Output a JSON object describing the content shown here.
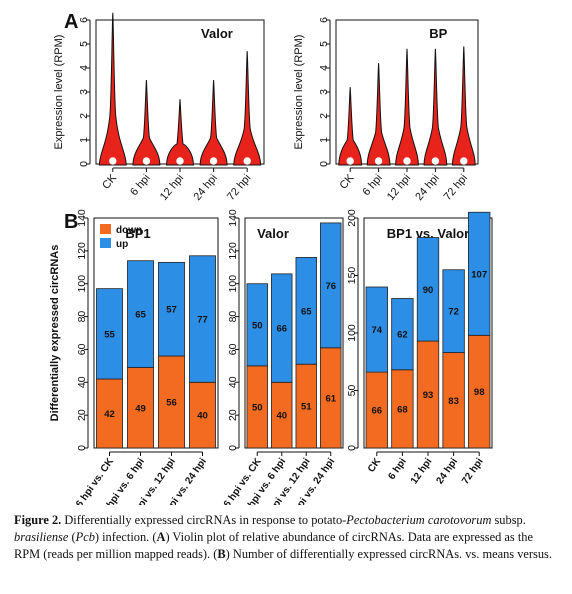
{
  "panel_labels": [
    "A",
    "B"
  ],
  "chart_data": [
    {
      "type": "violin",
      "title": "Valor",
      "ylabel": "Expression level (RPM)",
      "ylim": [
        0,
        6
      ],
      "yticks": [
        0,
        1,
        2,
        3,
        4,
        5,
        6
      ],
      "categories": [
        "CK",
        "6 hpi",
        "12 hpi",
        "24 hpi",
        "72 hpi"
      ],
      "max_values": [
        6.3,
        3.5,
        2.7,
        3.5,
        4.7
      ],
      "color": "#e8231b"
    },
    {
      "type": "violin",
      "title": "BP",
      "ylabel": "Expression level (RPM)",
      "ylim": [
        0,
        6
      ],
      "yticks": [
        0,
        1,
        2,
        3,
        4,
        5,
        6
      ],
      "categories": [
        "CK",
        "6 hpi",
        "12 hpi",
        "24 hpi",
        "72 hpi"
      ],
      "max_values": [
        3.2,
        4.2,
        4.8,
        4.8,
        4.9
      ],
      "color": "#e8231b"
    },
    {
      "type": "bar",
      "stacked": true,
      "title": "BP1",
      "ylabel": "Differentially expressed circRNAs",
      "ylim": [
        0,
        140
      ],
      "yticks": [
        0,
        20,
        40,
        60,
        80,
        100,
        120,
        140
      ],
      "categories": [
        "6 hpi vs. CK",
        "12 hpi vs. 6 hpi",
        "24 hpi vs. 12 hpi",
        "72 hpi vs. 24 hpi"
      ],
      "series": [
        {
          "name": "down",
          "color": "#f26b21",
          "values": [
            42,
            49,
            56,
            40
          ]
        },
        {
          "name": "up",
          "color": "#2d8ee6",
          "values": [
            55,
            65,
            57,
            77
          ]
        }
      ],
      "legend": "top-left"
    },
    {
      "type": "bar",
      "stacked": true,
      "title": "Valor",
      "ylim": [
        0,
        140
      ],
      "yticks": [
        0,
        20,
        40,
        60,
        80,
        100,
        120,
        140
      ],
      "categories": [
        "6 hpi vs. CK",
        "12 hpi vs. 6 hpi",
        "24 hpi vs. 12 hpi",
        "72 hpi vs. 24 hpi"
      ],
      "series": [
        {
          "name": "down",
          "color": "#f26b21",
          "values": [
            50,
            40,
            51,
            61
          ]
        },
        {
          "name": "up",
          "color": "#2d8ee6",
          "values": [
            50,
            66,
            65,
            76
          ]
        }
      ]
    },
    {
      "type": "bar",
      "stacked": true,
      "title": "BP1 vs. Valor",
      "ylim": [
        0,
        200
      ],
      "yticks": [
        0,
        50,
        100,
        150,
        200
      ],
      "categories": [
        "CK",
        "6 hpi",
        "12 hpi",
        "24 hpi",
        "72 hpi"
      ],
      "series": [
        {
          "name": "down",
          "color": "#f26b21",
          "values": [
            66,
            68,
            93,
            83,
            98
          ]
        },
        {
          "name": "up",
          "color": "#2d8ee6",
          "values": [
            74,
            62,
            90,
            72,
            107
          ]
        }
      ]
    }
  ],
  "caption": {
    "label": "Figure 2.",
    "t1": " Differentially expressed circRNAs in response to potato-",
    "i1": "Pectobacterium carotovorum",
    "t2": " subsp. ",
    "i2": "brasiliense",
    "t3": " (",
    "i3": "Pcb",
    "t4": ") infection. (",
    "b1": "A",
    "t5": ") Violin plot of relative abundance of circRNAs. Data are expressed as the RPM (reads per million mapped reads). (",
    "b2": "B",
    "t6": ") Number of differentially expressed circRNAs. vs. means versus."
  }
}
